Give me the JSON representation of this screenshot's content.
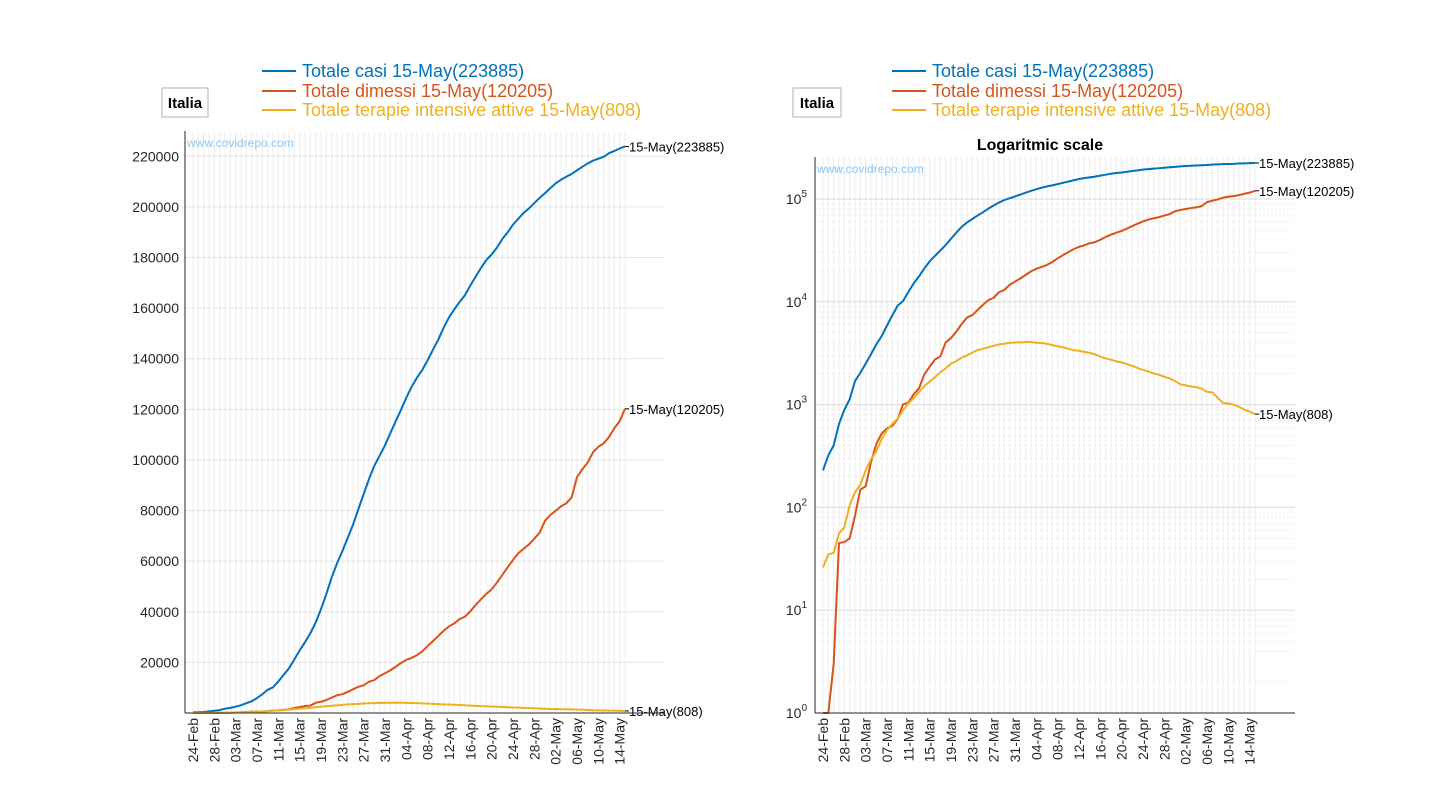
{
  "page": {
    "watermark": "www.covidrepo.com"
  },
  "chart_data": [
    {
      "panel": "linear",
      "type": "line",
      "region_label": "Italia",
      "title": "",
      "yscale": "linear",
      "ylim": [
        0,
        230000
      ],
      "yticks": [
        20000,
        40000,
        60000,
        80000,
        100000,
        120000,
        140000,
        160000,
        180000,
        200000,
        220000
      ],
      "xticks": [
        "24-Feb",
        "28-Feb",
        "03-Mar",
        "07-Mar",
        "11-Mar",
        "15-Mar",
        "19-Mar",
        "23-Mar",
        "27-Mar",
        "31-Mar",
        "04-Apr",
        "08-Apr",
        "12-Apr",
        "16-Apr",
        "20-Apr",
        "24-Apr",
        "28-Apr",
        "02-May",
        "06-May",
        "10-May",
        "14-May"
      ],
      "grid": true,
      "legend_placement": "top",
      "end_labels": [
        "15-May(223885)",
        "15-May(120205)",
        "15-May(808)"
      ],
      "series": [
        {
          "name": "Totale casi 15-May(223885)",
          "color": "#0072BD",
          "values": [
            229,
            322,
            400,
            650,
            888,
            1128,
            1694,
            2036,
            2502,
            3089,
            3858,
            4636,
            5883,
            7375,
            9172,
            10149,
            12462,
            15113,
            17660,
            21157,
            24747,
            27980,
            31506,
            35713,
            41035,
            47021,
            53578,
            59138,
            63927,
            69176,
            74386,
            80539,
            86498,
            92472,
            97689,
            101739,
            105792,
            110574,
            115242,
            119827,
            124632,
            128948,
            132547,
            135586,
            139422,
            143626,
            147577,
            152271,
            156363,
            159516,
            162488,
            165155,
            168941,
            172434,
            175925,
            178972,
            181228,
            183957,
            187327,
            189973,
            192994,
            195351,
            197675,
            199414,
            201505,
            203591,
            205463,
            207428,
            209328,
            210717,
            211938,
            213013,
            214457,
            215858,
            217185,
            218268,
            219070,
            219814,
            221216,
            222104,
            223096,
            223885
          ]
        },
        {
          "name": "Totale dimessi 15-May(120205)",
          "color": "#D95319",
          "values": [
            1,
            1,
            3,
            45,
            46,
            50,
            83,
            149,
            160,
            276,
            414,
            523,
            589,
            622,
            724,
            1004,
            1045,
            1258,
            1439,
            1966,
            2335,
            2749,
            2941,
            4025,
            4440,
            5129,
            6072,
            7024,
            7432,
            8326,
            9362,
            10361,
            10950,
            12384,
            13030,
            14620,
            15729,
            16847,
            18278,
            19758,
            20996,
            21815,
            22837,
            24392,
            26491,
            28470,
            30455,
            32534,
            34211,
            35435,
            37130,
            38092,
            40164,
            42727,
            44927,
            47055,
            48877,
            51600,
            54543,
            57576,
            60498,
            63120,
            64928,
            66624,
            68941,
            71252,
            75945,
            78249,
            79914,
            81654,
            82879,
            85231,
            93245,
            96276,
            99023,
            103031,
            105186,
            106587,
            109039,
            112541,
            115288,
            120205
          ]
        },
        {
          "name": "Totale terapie intensive attive 15-May(808)",
          "color": "#EDB120",
          "values": [
            26,
            35,
            36,
            56,
            64,
            105,
            140,
            166,
            229,
            295,
            351,
            462,
            567,
            650,
            733,
            877,
            1028,
            1153,
            1328,
            1518,
            1672,
            1851,
            2060,
            2257,
            2498,
            2655,
            2857,
            3009,
            3204,
            3396,
            3489,
            3612,
            3732,
            3856,
            3906,
            3981,
            4023,
            4035,
            4053,
            4068,
            3994,
            3977,
            3898,
            3792,
            3693,
            3605,
            3497,
            3381,
            3343,
            3260,
            3186,
            3079,
            2936,
            2812,
            2733,
            2635,
            2573,
            2471,
            2384,
            2267,
            2173,
            2102,
            2009,
            1956,
            1863,
            1795,
            1694,
            1578,
            1539,
            1501,
            1479,
            1427,
            1333,
            1311,
            1168,
            1034,
            1027,
            999,
            952,
            893,
            855,
            808
          ]
        }
      ]
    },
    {
      "panel": "log",
      "type": "line",
      "region_label": "Italia",
      "title": "Logaritmic scale",
      "yscale": "log",
      "ylim": [
        1,
        250000
      ],
      "yticks": [
        "10^0",
        "10^1",
        "10^2",
        "10^3",
        "10^4",
        "10^5"
      ],
      "xticks": [
        "24-Feb",
        "28-Feb",
        "03-Mar",
        "07-Mar",
        "11-Mar",
        "15-Mar",
        "19-Mar",
        "23-Mar",
        "27-Mar",
        "31-Mar",
        "04-Apr",
        "08-Apr",
        "12-Apr",
        "16-Apr",
        "20-Apr",
        "24-Apr",
        "28-Apr",
        "02-May",
        "06-May",
        "10-May",
        "14-May"
      ],
      "grid": true,
      "legend_placement": "top",
      "end_labels": [
        "15-May(223885)",
        "15-May(120205)",
        "15-May(808)"
      ]
    }
  ]
}
